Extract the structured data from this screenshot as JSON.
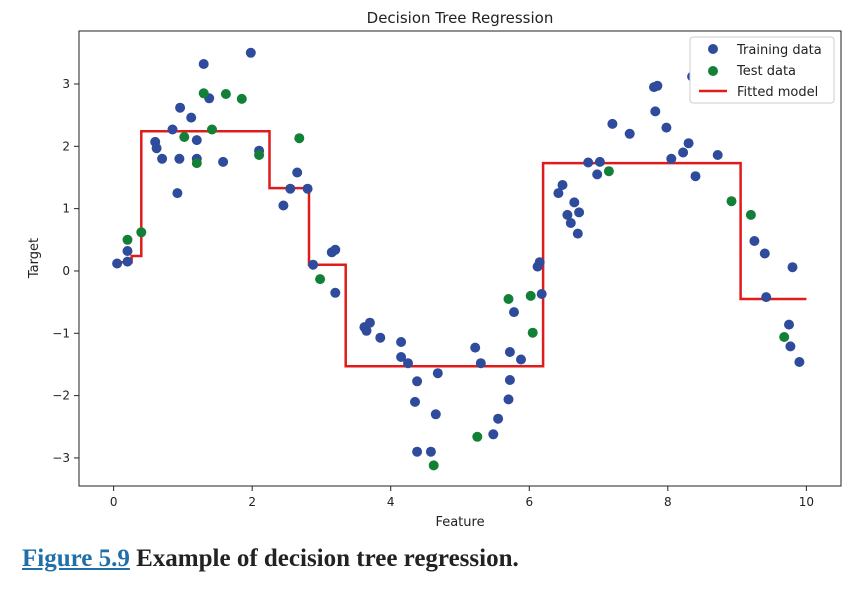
{
  "caption": {
    "figure_ref": "Figure 5.9",
    "text": "Example of decision tree regression."
  },
  "colors": {
    "training": "#2f4b9b",
    "test": "#128036",
    "model": "#e01b1b"
  },
  "chart_data": {
    "type": "scatter",
    "title": "Decision Tree Regression",
    "xlabel": "Feature",
    "ylabel": "Target",
    "xlim": [
      -0.5,
      10.5
    ],
    "ylim": [
      -3.45,
      3.85
    ],
    "xticks": [
      0,
      2,
      4,
      6,
      8,
      10
    ],
    "yticks": [
      -3,
      -2,
      -1,
      0,
      1,
      2,
      3
    ],
    "grid": false,
    "legend_position": "top-right",
    "series": [
      {
        "name": "Training data",
        "kind": "scatter",
        "color": "#2f4b9b",
        "points": [
          [
            0.05,
            0.12
          ],
          [
            0.2,
            0.15
          ],
          [
            0.2,
            0.32
          ],
          [
            0.6,
            2.07
          ],
          [
            0.62,
            1.97
          ],
          [
            0.7,
            1.8
          ],
          [
            0.85,
            2.27
          ],
          [
            0.92,
            1.25
          ],
          [
            0.95,
            1.8
          ],
          [
            0.96,
            2.62
          ],
          [
            1.12,
            2.46
          ],
          [
            1.2,
            2.1
          ],
          [
            1.2,
            1.8
          ],
          [
            1.3,
            3.32
          ],
          [
            1.38,
            2.77
          ],
          [
            1.58,
            1.75
          ],
          [
            1.98,
            3.5
          ],
          [
            2.1,
            1.93
          ],
          [
            2.45,
            1.05
          ],
          [
            2.55,
            1.32
          ],
          [
            2.65,
            1.58
          ],
          [
            2.8,
            1.32
          ],
          [
            2.88,
            0.1
          ],
          [
            3.15,
            0.3
          ],
          [
            3.2,
            0.34
          ],
          [
            3.2,
            -0.35
          ],
          [
            3.62,
            -0.9
          ],
          [
            3.65,
            -0.96
          ],
          [
            3.7,
            -0.83
          ],
          [
            3.85,
            -1.07
          ],
          [
            4.15,
            -1.14
          ],
          [
            4.15,
            -1.38
          ],
          [
            4.25,
            -1.48
          ],
          [
            4.35,
            -2.1
          ],
          [
            4.38,
            -1.77
          ],
          [
            4.38,
            -2.9
          ],
          [
            4.58,
            -2.9
          ],
          [
            4.65,
            -2.3
          ],
          [
            4.68,
            -1.64
          ],
          [
            5.22,
            -1.23
          ],
          [
            5.3,
            -1.48
          ],
          [
            5.48,
            -2.62
          ],
          [
            5.55,
            -2.37
          ],
          [
            5.7,
            -2.06
          ],
          [
            5.72,
            -1.3
          ],
          [
            5.72,
            -1.75
          ],
          [
            5.78,
            -0.66
          ],
          [
            5.88,
            -1.42
          ],
          [
            6.12,
            0.07
          ],
          [
            6.15,
            0.14
          ],
          [
            6.18,
            -0.37
          ],
          [
            6.42,
            1.25
          ],
          [
            6.48,
            1.38
          ],
          [
            6.55,
            0.9
          ],
          [
            6.6,
            0.77
          ],
          [
            6.65,
            1.1
          ],
          [
            6.7,
            0.6
          ],
          [
            6.72,
            0.94
          ],
          [
            6.85,
            1.74
          ],
          [
            6.98,
            1.55
          ],
          [
            7.02,
            1.75
          ],
          [
            7.2,
            2.36
          ],
          [
            7.45,
            2.2
          ],
          [
            7.8,
            2.95
          ],
          [
            7.82,
            2.56
          ],
          [
            7.85,
            2.97
          ],
          [
            7.98,
            2.3
          ],
          [
            8.05,
            1.8
          ],
          [
            8.22,
            1.9
          ],
          [
            8.3,
            2.05
          ],
          [
            8.35,
            3.12
          ],
          [
            8.4,
            1.52
          ],
          [
            8.72,
            1.86
          ],
          [
            9.25,
            0.48
          ],
          [
            9.4,
            0.28
          ],
          [
            9.42,
            -0.42
          ],
          [
            9.75,
            -0.86
          ],
          [
            9.77,
            -1.21
          ],
          [
            9.8,
            0.06
          ],
          [
            9.9,
            -1.46
          ]
        ]
      },
      {
        "name": "Test data",
        "kind": "scatter",
        "color": "#128036",
        "points": [
          [
            0.2,
            0.5
          ],
          [
            0.4,
            0.62
          ],
          [
            1.02,
            2.15
          ],
          [
            1.2,
            1.73
          ],
          [
            1.3,
            2.85
          ],
          [
            1.42,
            2.27
          ],
          [
            1.62,
            2.84
          ],
          [
            1.85,
            2.76
          ],
          [
            2.1,
            1.86
          ],
          [
            2.68,
            2.13
          ],
          [
            2.98,
            -0.13
          ],
          [
            5.25,
            -2.66
          ],
          [
            4.62,
            -3.12
          ],
          [
            5.7,
            -0.45
          ],
          [
            6.02,
            -0.4
          ],
          [
            6.05,
            -0.99
          ],
          [
            7.15,
            1.6
          ],
          [
            8.92,
            1.12
          ],
          [
            9.2,
            0.9
          ],
          [
            9.68,
            -1.06
          ]
        ]
      },
      {
        "name": "Fitted model",
        "kind": "step-line",
        "color": "#e01b1b",
        "points": [
          [
            0.0,
            0.14
          ],
          [
            0.26,
            0.14
          ],
          [
            0.26,
            0.24
          ],
          [
            0.4,
            0.24
          ],
          [
            0.4,
            2.24
          ],
          [
            2.25,
            2.24
          ],
          [
            2.25,
            1.33
          ],
          [
            2.82,
            1.33
          ],
          [
            2.82,
            0.1
          ],
          [
            3.35,
            0.1
          ],
          [
            3.35,
            -1.53
          ],
          [
            6.2,
            -1.53
          ],
          [
            6.2,
            1.73
          ],
          [
            9.05,
            1.73
          ],
          [
            9.05,
            -0.45
          ],
          [
            10.0,
            -0.45
          ]
        ]
      }
    ]
  }
}
